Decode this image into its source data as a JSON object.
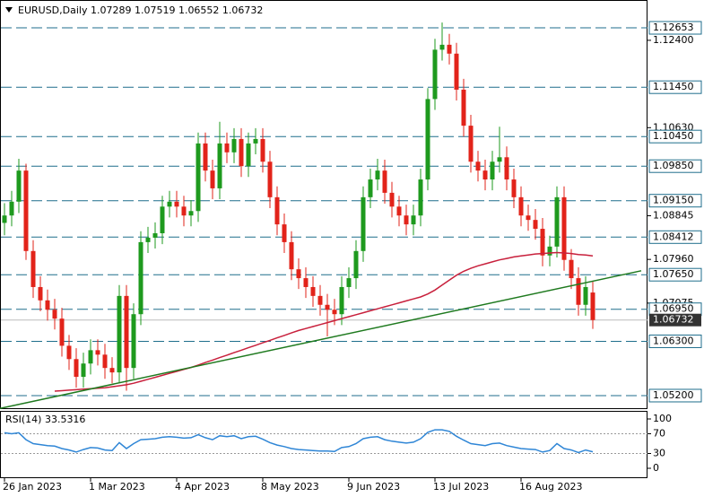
{
  "chart_data": {
    "type": "candlestick",
    "title": "EURUSD,Daily  1.07289 1.07519 1.06552 1.06732",
    "up_color": "#1e9a1e",
    "down_color": "#e2231a",
    "xlim": [
      -0.625,
      89.625
    ],
    "xticks": [
      {
        "value": 0,
        "label": "26 Jan 2023"
      },
      {
        "value": 12,
        "label": "1 Mar 2023"
      },
      {
        "value": 24,
        "label": "4 Apr 2023"
      },
      {
        "value": 36,
        "label": "8 May 2023"
      },
      {
        "value": 48,
        "label": "9 Jun 2023"
      },
      {
        "value": 60,
        "label": "13 Jul 2023"
      },
      {
        "value": 72,
        "label": "16 Aug 2023"
      }
    ],
    "ylim": [
      1.04945,
      1.13217
    ],
    "yticks": [
      {
        "value": 1.124,
        "label": "1.12400"
      },
      {
        "value": 1.1063,
        "label": "1.10630"
      },
      1.08845,
      {
        "value": 1.0796,
        "label": "1.07960"
      },
      1.07075
    ],
    "levels": [
      1.12653,
      {
        "value": 1.1145,
        "label": "1.11450"
      },
      {
        "value": 1.1045,
        "label": "1.10450"
      },
      {
        "value": 1.0985,
        "label": "1.09850"
      },
      {
        "value": 1.0915,
        "label": "1.09150"
      },
      1.08412,
      {
        "value": 1.0765,
        "label": "1.07650"
      },
      {
        "value": 1.0695,
        "label": "1.06950"
      },
      {
        "value": 1.063,
        "label": "1.06300"
      },
      {
        "value": 1.052,
        "label": "1.05200"
      }
    ],
    "level_color": "#1f6e8c",
    "last_price": 1.06732,
    "open": [
      1.087,
      1.0885,
      1.0913,
      1.0976,
      1.0813,
      1.074,
      1.0713,
      1.0694,
      1.0676,
      1.0621,
      1.0594,
      1.0558,
      1.0585,
      1.0612,
      1.0603,
      1.0576,
      1.0567,
      1.0722,
      1.0576,
      1.0685,
      1.0831,
      1.084,
      1.0849,
      1.0903,
      1.0913,
      1.0903,
      1.0885,
      1.0894,
      1.1031,
      1.0976,
      1.094,
      1.1031,
      1.1013,
      1.104,
      1.0985,
      1.1031,
      1.104,
      1.0994,
      1.0922,
      1.0867,
      1.0831,
      1.0776,
      1.0758,
      1.074,
      1.0722,
      1.0704,
      1.0694,
      1.0685,
      1.074,
      1.0758,
      1.0813,
      1.0922,
      1.0958,
      1.0976,
      1.0931,
      1.0903,
      1.0885,
      1.0867,
      1.0885,
      1.0958,
      1.1121,
      1.1221,
      1.1231,
      1.1213,
      1.114,
      1.1067,
      1.0994,
      1.0976,
      1.0958,
      1.0994,
      1.1003,
      1.0958,
      1.0922,
      1.0885,
      1.0876,
      1.0858,
      1.0804,
      1.0822,
      1.0922,
      1.0795,
      1.0758,
      1.0704,
      1.07289
    ],
    "high": [
      1.091,
      1.0935,
      1.1,
      1.099,
      1.0835,
      1.0762,
      1.0735,
      1.0716,
      1.0698,
      1.0643,
      1.0616,
      1.0607,
      1.0634,
      1.0634,
      1.0625,
      1.0598,
      1.0744,
      1.0744,
      1.0707,
      1.0853,
      1.0862,
      1.0871,
      1.0925,
      1.0935,
      1.0935,
      1.0925,
      1.0916,
      1.1053,
      1.1053,
      1.0998,
      1.1075,
      1.1053,
      1.1062,
      1.1062,
      1.1053,
      1.1062,
      1.1062,
      1.1016,
      1.0944,
      1.0889,
      1.0853,
      1.0798,
      1.078,
      1.0762,
      1.0744,
      1.0726,
      1.0716,
      1.0762,
      1.078,
      1.0835,
      1.0944,
      1.098,
      1.1,
      1.0998,
      1.0953,
      1.0925,
      1.0907,
      1.0907,
      1.098,
      1.1143,
      1.1243,
      1.1276,
      1.1253,
      1.1235,
      1.1162,
      1.1089,
      1.1016,
      1.0998,
      1.1016,
      1.1065,
      1.1025,
      1.098,
      1.0944,
      1.0907,
      1.0898,
      1.088,
      1.0844,
      1.0944,
      1.0944,
      1.0817,
      1.078,
      1.0762,
      1.07519
    ],
    "low": [
      1.0845,
      1.0863,
      1.089,
      1.0795,
      1.0718,
      1.0691,
      1.0672,
      1.0654,
      1.0599,
      1.0572,
      1.0536,
      1.0536,
      1.0563,
      1.0581,
      1.0554,
      1.0545,
      1.0545,
      1.053,
      1.0554,
      1.0663,
      1.0809,
      1.0818,
      1.0827,
      1.0881,
      1.0881,
      1.0863,
      1.0863,
      1.0872,
      1.0954,
      1.0918,
      1.0918,
      1.0991,
      1.0991,
      1.0963,
      1.0963,
      1.1009,
      1.0972,
      1.09,
      1.0845,
      1.0809,
      1.0754,
      1.0736,
      1.0718,
      1.07,
      1.0682,
      1.064,
      1.0663,
      1.0663,
      1.0718,
      1.0736,
      1.0791,
      1.09,
      1.0936,
      1.0909,
      1.0881,
      1.0863,
      1.0845,
      1.0845,
      1.0863,
      1.0936,
      1.1099,
      1.1199,
      1.1191,
      1.1118,
      1.1045,
      1.0972,
      1.0954,
      1.0936,
      1.0936,
      1.0972,
      1.0936,
      1.09,
      1.0863,
      1.0854,
      1.0836,
      1.0782,
      1.0782,
      1.08,
      1.0773,
      1.0736,
      1.0682,
      1.0682,
      1.06552
    ],
    "close": [
      1.0885,
      1.0913,
      1.0976,
      1.0813,
      1.074,
      1.0713,
      1.0694,
      1.0676,
      1.0621,
      1.0594,
      1.0558,
      1.0585,
      1.0612,
      1.0603,
      1.0576,
      1.0567,
      1.0722,
      1.0576,
      1.0685,
      1.0831,
      1.084,
      1.0849,
      1.0903,
      1.0913,
      1.0903,
      1.0885,
      1.0894,
      1.1031,
      1.0976,
      1.094,
      1.1031,
      1.1013,
      1.104,
      1.0985,
      1.1031,
      1.104,
      1.0994,
      1.0922,
      1.0867,
      1.0831,
      1.0776,
      1.0758,
      1.074,
      1.0722,
      1.0704,
      1.0694,
      1.0685,
      1.074,
      1.0758,
      1.0813,
      1.0922,
      1.0958,
      1.0976,
      1.0931,
      1.0903,
      1.0885,
      1.0867,
      1.0885,
      1.0958,
      1.1121,
      1.1221,
      1.1231,
      1.1213,
      1.114,
      1.1067,
      1.0994,
      1.0976,
      1.0958,
      1.0994,
      1.1003,
      1.0958,
      1.0922,
      1.0885,
      1.0876,
      1.0858,
      1.0804,
      1.0822,
      1.0922,
      1.0795,
      1.0758,
      1.0704,
      1.074,
      1.06732
    ],
    "ma_color": "#c8203c",
    "ma_values": [
      null,
      null,
      null,
      null,
      null,
      null,
      null,
      1.0529,
      1.053,
      1.0531,
      1.0532,
      1.0533,
      1.0534,
      1.0535,
      1.0536,
      1.0538,
      1.054,
      1.0542,
      1.0545,
      1.0549,
      1.0553,
      1.0557,
      1.0561,
      1.0565,
      1.0569,
      1.0573,
      1.0577,
      1.0582,
      1.0587,
      1.0592,
      1.0597,
      1.0602,
      1.0607,
      1.0612,
      1.0617,
      1.0622,
      1.0627,
      1.0632,
      1.0637,
      1.0642,
      1.0647,
      1.0652,
      1.0656,
      1.066,
      1.0664,
      1.0668,
      1.0672,
      1.0676,
      1.068,
      1.0684,
      1.0688,
      1.0692,
      1.0696,
      1.07,
      1.0704,
      1.0708,
      1.0712,
      1.0716,
      1.072,
      1.0726,
      1.0734,
      1.0744,
      1.0754,
      1.0764,
      1.0772,
      1.0778,
      1.0783,
      1.0787,
      1.0791,
      1.0795,
      1.0798,
      1.0801,
      1.0803,
      1.0805,
      1.0807,
      1.0808,
      1.0809,
      1.081,
      1.0809,
      1.0808,
      1.0806,
      1.0805,
      1.0803
    ],
    "trendline_color": "#1f7a1f",
    "trendline": {
      "x": [
        -0.625,
        88.75
      ],
      "y": [
        1.0494,
        1.0773
      ]
    },
    "rsi": {
      "title": "RSI(14) 33.5316",
      "color": "#2f86d6",
      "ylim": [
        0,
        100
      ],
      "yticks": [
        100,
        70,
        30,
        0
      ],
      "levels": [
        70,
        30
      ],
      "values": [
        72,
        70,
        72,
        58,
        50,
        48,
        46,
        45,
        40,
        37,
        33,
        38,
        42,
        41,
        37,
        36,
        52,
        40,
        50,
        58,
        59,
        60,
        63,
        64,
        63,
        61,
        62,
        68,
        62,
        58,
        66,
        64,
        66,
        60,
        64,
        65,
        59,
        52,
        47,
        44,
        40,
        38,
        37,
        36,
        35,
        35,
        34,
        42,
        44,
        50,
        60,
        63,
        64,
        58,
        55,
        53,
        51,
        53,
        60,
        73,
        78,
        78,
        75,
        65,
        57,
        50,
        48,
        46,
        50,
        51,
        46,
        43,
        40,
        39,
        38,
        33,
        36,
        50,
        40,
        37,
        32,
        37,
        33.5316
      ]
    }
  }
}
